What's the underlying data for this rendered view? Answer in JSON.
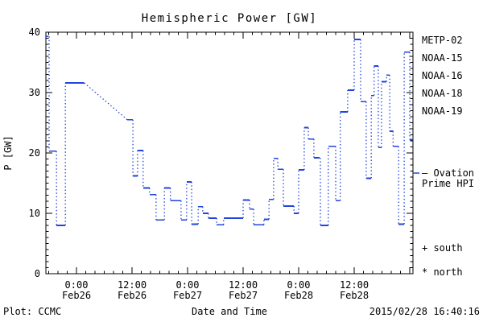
{
  "header": {
    "title": "Hemispheric Power [GW]"
  },
  "axes": {
    "y_label": "P [GW]",
    "x_label": "Date and Time",
    "y_tick_values": [
      0,
      10,
      20,
      30,
      40
    ],
    "y_tick_labels": [
      "0",
      "10",
      "20",
      "30",
      "40"
    ]
  },
  "footer": {
    "left": "Plot: CCMC",
    "right": "2015/02/28 16:40:16"
  },
  "legend": {
    "items": [
      {
        "label": "METP-02",
        "color": "#000000"
      },
      {
        "label": "NOAA-15",
        "color": "#2244dd"
      },
      {
        "label": "NOAA-16",
        "color": "#33aadd"
      },
      {
        "label": "NOAA-18",
        "color": "#44dd88"
      },
      {
        "label": "NOAA-19",
        "color": "#ee9922"
      }
    ]
  },
  "ovation": {
    "line1": "— Ovation",
    "line2": "Prime HPI",
    "color": "#2244dd"
  },
  "markers": {
    "south": "+ south",
    "north": "* north"
  },
  "chart_data": {
    "type": "line",
    "subtype": "step-plateaus-with-dotted-connectors",
    "title": "Hemispheric Power [GW]",
    "xlabel": "Date and Time",
    "ylabel": "P [GW]",
    "ylim": [
      0,
      40
    ],
    "xlim_hours_rel_feb26_0000": [
      -6.6,
      72.7
    ],
    "y_major_step": 10,
    "y_minor_step": 1,
    "x_major_step_hours": 12,
    "x_minor_step_hours": 2,
    "grid": false,
    "legend_position": "right-outside",
    "x_tick_labels": [
      {
        "t": 0,
        "time": "0:00",
        "date": "Feb26"
      },
      {
        "t": 12,
        "time": "12:00",
        "date": "Feb26"
      },
      {
        "t": 24,
        "time": "0:00",
        "date": "Feb27"
      },
      {
        "t": 36,
        "time": "12:00",
        "date": "Feb27"
      },
      {
        "t": 48,
        "time": "0:00",
        "date": "Feb28"
      },
      {
        "t": 60,
        "time": "12:00",
        "date": "Feb28"
      }
    ],
    "series": [
      {
        "name": "Ovation Prime HPI",
        "color": "#2244dd",
        "segments_t0_t1_gw": [
          [
            -6.6,
            -6.1,
            39.3
          ],
          [
            -5.9,
            -4.3,
            20.3
          ],
          [
            -4.3,
            -2.4,
            8.0
          ],
          [
            -2.4,
            1.7,
            31.6
          ],
          [
            11.0,
            12.2,
            25.5
          ],
          [
            12.2,
            13.2,
            16.2
          ],
          [
            13.2,
            14.4,
            20.4
          ],
          [
            14.4,
            15.8,
            14.2
          ],
          [
            15.8,
            17.2,
            13.1
          ],
          [
            17.2,
            19.0,
            8.9
          ],
          [
            19.0,
            20.3,
            14.2
          ],
          [
            20.3,
            22.6,
            12.1
          ],
          [
            22.6,
            23.8,
            8.9
          ],
          [
            23.8,
            24.9,
            15.2
          ],
          [
            24.9,
            26.3,
            8.2
          ],
          [
            26.3,
            27.3,
            11.1
          ],
          [
            27.3,
            28.5,
            10.0
          ],
          [
            28.5,
            30.3,
            9.2
          ],
          [
            30.3,
            31.8,
            8.1
          ],
          [
            31.8,
            36.0,
            9.2
          ],
          [
            36.0,
            37.4,
            12.2
          ],
          [
            37.4,
            38.3,
            10.7
          ],
          [
            38.3,
            40.5,
            8.1
          ],
          [
            40.5,
            41.6,
            9.0
          ],
          [
            41.6,
            42.6,
            12.3
          ],
          [
            42.6,
            43.5,
            19.1
          ],
          [
            43.5,
            44.7,
            17.3
          ],
          [
            44.7,
            47.0,
            11.2
          ],
          [
            47.0,
            48.0,
            10.0
          ],
          [
            48.0,
            49.2,
            17.2
          ],
          [
            49.2,
            50.1,
            24.2
          ],
          [
            50.1,
            51.3,
            22.3
          ],
          [
            51.3,
            52.5,
            19.2
          ],
          [
            52.7,
            54.4,
            8.0
          ],
          [
            54.4,
            56.0,
            21.1
          ],
          [
            56.0,
            57.0,
            12.1
          ],
          [
            57.0,
            58.6,
            26.8
          ],
          [
            58.6,
            60.0,
            30.4
          ],
          [
            60.0,
            61.4,
            38.8
          ],
          [
            61.4,
            62.6,
            28.5
          ],
          [
            62.6,
            63.7,
            15.8
          ],
          [
            63.7,
            64.3,
            29.5
          ],
          [
            64.3,
            65.2,
            34.4
          ],
          [
            65.2,
            65.9,
            20.9
          ],
          [
            65.9,
            67.0,
            31.8
          ],
          [
            67.0,
            67.7,
            32.9
          ],
          [
            67.7,
            68.4,
            23.6
          ],
          [
            68.4,
            69.6,
            21.1
          ],
          [
            69.6,
            70.8,
            8.2
          ],
          [
            70.8,
            72.0,
            36.7
          ],
          [
            72.0,
            72.7,
            22.2
          ]
        ]
      }
    ]
  }
}
